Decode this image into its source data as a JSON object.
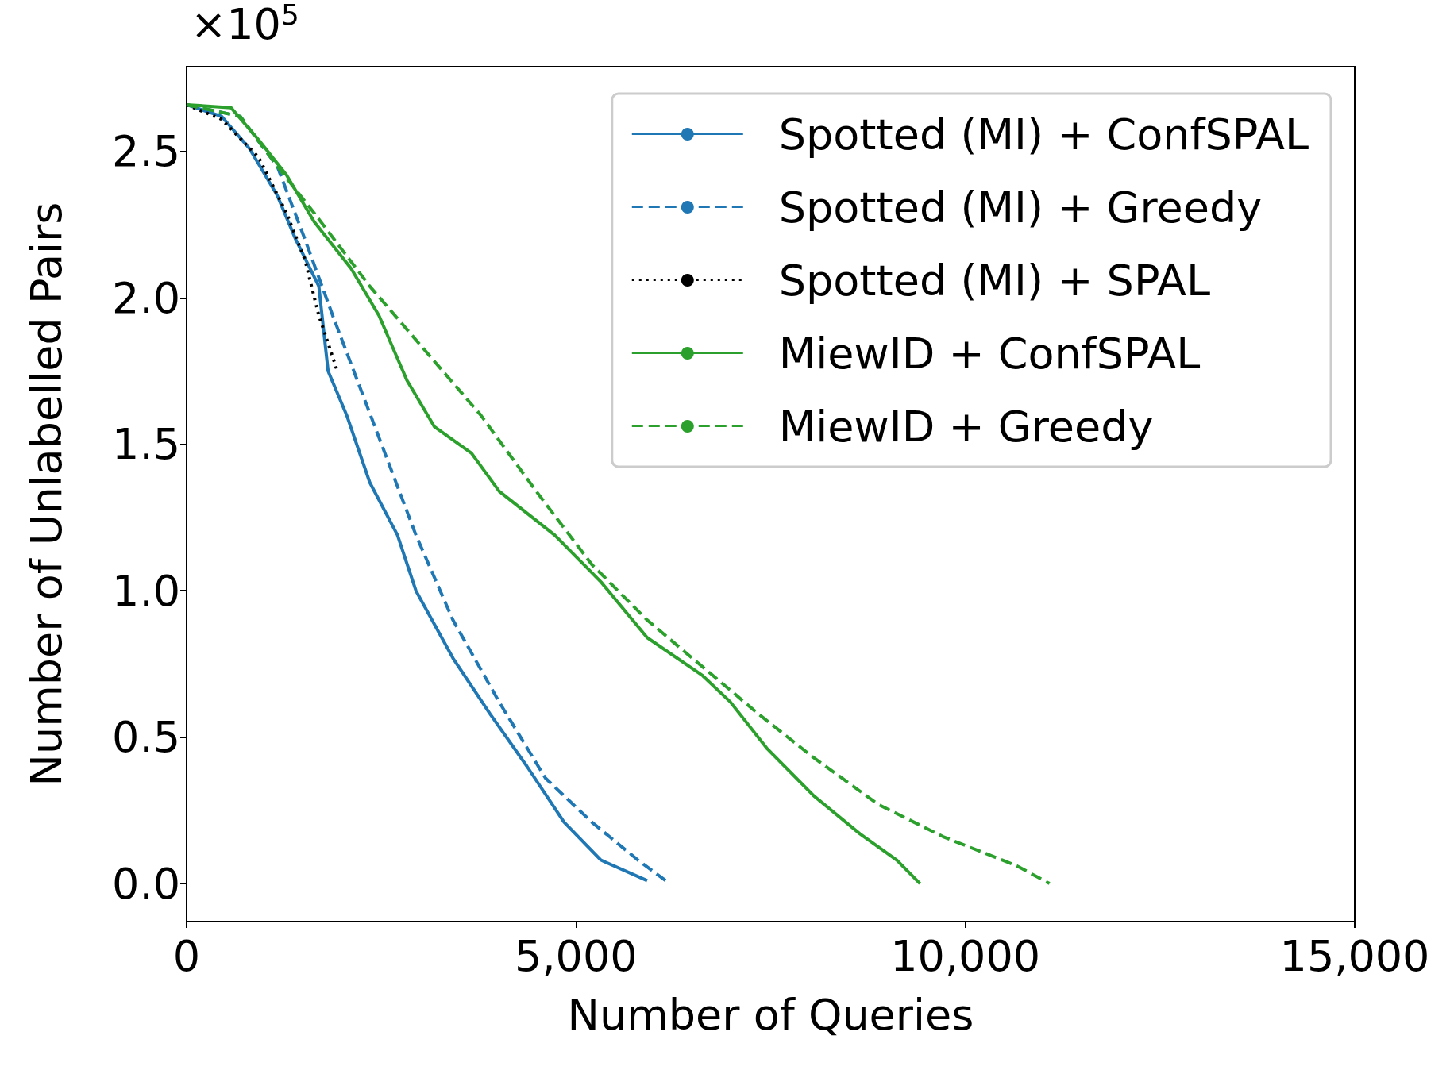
{
  "chart_data": {
    "type": "line",
    "xlabel": "Number of Queries",
    "ylabel": "Number of Unlabelled Pairs",
    "annotations": [
      "×10$^{5}$"
    ],
    "xlim": [
      0,
      15000
    ],
    "xticks": [
      0,
      {
        "value": 5000,
        "label": "5,000"
      },
      {
        "value": 10000,
        "label": "10,000"
      },
      {
        "value": 15000,
        "label": "15,000"
      }
    ],
    "ylim": [
      -0.13,
      2.79
    ],
    "yticks": [
      {
        "value": 0,
        "label": "0.0"
      },
      0.5,
      {
        "value": 1,
        "label": "1.0"
      },
      1.5,
      {
        "value": 2,
        "label": "2.0"
      },
      2.5
    ],
    "grid": false,
    "legend": "top right",
    "marker": "none",
    "series": [
      {
        "name": "Spotted (MI) + ConfSPAL",
        "color": "#1f77b4",
        "line_style": "solid",
        "x": [
          0,
          451,
          808,
          1164,
          1401,
          1698,
          1817,
          2055,
          2352,
          2708,
          2945,
          3420,
          3895,
          4371,
          4846,
          5321,
          5914
        ],
        "values": [
          2.66,
          2.62,
          2.51,
          2.35,
          2.2,
          2.04,
          1.75,
          1.6,
          1.37,
          1.19,
          1.0,
          0.77,
          0.58,
          0.4,
          0.21,
          0.08,
          0.01
        ]
      },
      {
        "name": "Spotted (MI) + Greedy",
        "color": "#1f77b4",
        "line_style": "dashed",
        "x": [
          0,
          689,
          1164,
          1520,
          1876,
          2233,
          2589,
          2945,
          3420,
          4014,
          4608,
          5202,
          5796,
          6152
        ],
        "values": [
          2.66,
          2.62,
          2.45,
          2.2,
          1.94,
          1.69,
          1.44,
          1.19,
          0.9,
          0.62,
          0.36,
          0.21,
          0.08,
          0.01
        ]
      },
      {
        "name": "Spotted (MI) + SPAL",
        "color": "#000000",
        "line_style": "dotted",
        "x": [
          0,
          451,
          926,
          1283,
          1520,
          1698,
          1936
        ],
        "values": [
          2.66,
          2.61,
          2.48,
          2.29,
          2.13,
          1.94,
          1.75
        ]
      },
      {
        "name": "MiewID + ConfSPAL",
        "color": "#2ca02c",
        "line_style": "solid",
        "x": [
          0,
          570,
          926,
          1283,
          1639,
          2114,
          2470,
          2827,
          3183,
          3658,
          4014,
          4727,
          5321,
          5914,
          6627,
          6983,
          7458,
          8052,
          8646,
          9121,
          9418
        ],
        "values": [
          2.66,
          2.65,
          2.54,
          2.42,
          2.26,
          2.1,
          1.94,
          1.72,
          1.56,
          1.47,
          1.34,
          1.19,
          1.03,
          0.84,
          0.71,
          0.62,
          0.46,
          0.3,
          0.17,
          0.08,
          0.0
        ]
      },
      {
        "name": "MiewID + Greedy",
        "color": "#2ca02c",
        "line_style": "dashed",
        "x": [
          0,
          689,
          1164,
          1639,
          2352,
          3064,
          3777,
          4489,
          5202,
          5914,
          6627,
          7340,
          8052,
          8884,
          9715,
          10665,
          11081
        ],
        "values": [
          2.66,
          2.62,
          2.45,
          2.29,
          2.04,
          1.82,
          1.6,
          1.34,
          1.09,
          0.9,
          0.74,
          0.58,
          0.43,
          0.27,
          0.16,
          0.06,
          0.0
        ]
      }
    ]
  }
}
